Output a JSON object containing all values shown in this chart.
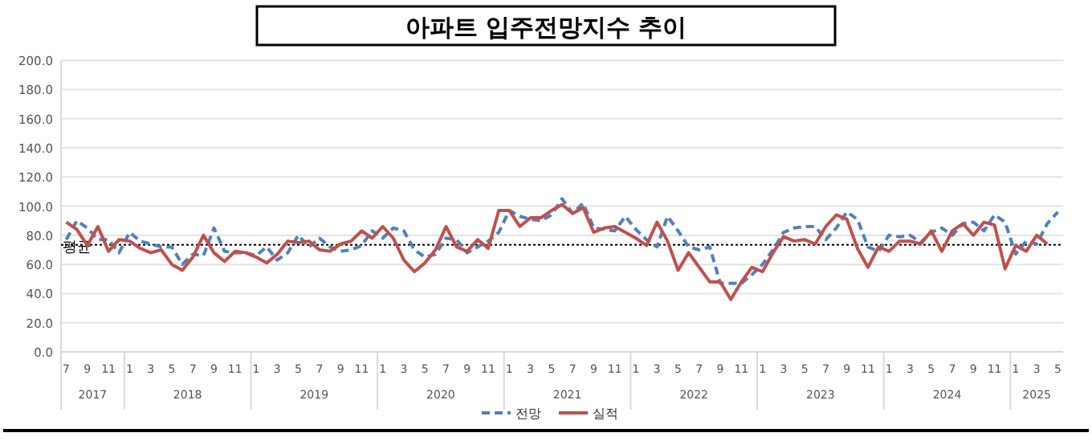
{
  "chart_data": {
    "type": "line",
    "title": "아파트 입주전망지수 추이",
    "x": [
      "2017-07",
      "2017-08",
      "2017-09",
      "2017-10",
      "2017-11",
      "2017-12",
      "2018-01",
      "2018-02",
      "2018-03",
      "2018-04",
      "2018-05",
      "2018-06",
      "2018-07",
      "2018-08",
      "2018-09",
      "2018-10",
      "2018-11",
      "2018-12",
      "2019-01",
      "2019-02",
      "2019-03",
      "2019-04",
      "2019-05",
      "2019-06",
      "2019-07",
      "2019-08",
      "2019-09",
      "2019-10",
      "2019-11",
      "2019-12",
      "2020-01",
      "2020-02",
      "2020-03",
      "2020-04",
      "2020-05",
      "2020-06",
      "2020-07",
      "2020-08",
      "2020-09",
      "2020-10",
      "2020-11",
      "2020-12",
      "2021-01",
      "2021-02",
      "2021-03",
      "2021-04",
      "2021-05",
      "2021-06",
      "2021-07",
      "2021-08",
      "2021-09",
      "2021-10",
      "2021-11",
      "2021-12",
      "2022-01",
      "2022-02",
      "2022-03",
      "2022-04",
      "2022-05",
      "2022-06",
      "2022-07",
      "2022-08",
      "2022-09",
      "2022-10",
      "2022-11",
      "2022-12",
      "2023-01",
      "2023-02",
      "2023-03",
      "2023-04",
      "2023-05",
      "2023-06",
      "2023-07",
      "2023-08",
      "2023-09",
      "2023-10",
      "2023-11",
      "2023-12",
      "2024-01",
      "2024-02",
      "2024-03",
      "2024-04",
      "2024-05",
      "2024-06",
      "2024-07",
      "2024-08",
      "2024-09",
      "2024-10",
      "2024-11",
      "2024-12",
      "2025-01",
      "2025-02",
      "2025-03",
      "2025-04",
      "2025-05"
    ],
    "series": [
      {
        "name": "전망",
        "color": "#4f81bd",
        "line_style": "dashed",
        "values": [
          77,
          90,
          85,
          77,
          77,
          68,
          82,
          76,
          74,
          72,
          72,
          60,
          67,
          66,
          85,
          69,
          68,
          68,
          66,
          72,
          63,
          68,
          80,
          72,
          78,
          72,
          69,
          70,
          73,
          83,
          78,
          85,
          83,
          70,
          65,
          67,
          78,
          77,
          68,
          72,
          76,
          82,
          97,
          93,
          91,
          90,
          94,
          105,
          95,
          102,
          85,
          84,
          83,
          93,
          84,
          77,
          72,
          93,
          83,
          72,
          70,
          72,
          47,
          47,
          47,
          53,
          60,
          70,
          82,
          85,
          86,
          86,
          77,
          85,
          96,
          91,
          72,
          69,
          80,
          79,
          80,
          75,
          82,
          85,
          80,
          88,
          89,
          83,
          94,
          89,
          67,
          76,
          74,
          88,
          96
        ]
      },
      {
        "name": "실적",
        "color": "#c0504d",
        "line_style": "solid",
        "values": [
          89,
          84,
          73,
          86,
          69,
          77,
          76,
          71,
          68,
          70,
          60,
          56,
          65,
          80,
          68,
          62,
          69,
          68,
          65,
          61,
          67,
          76,
          75,
          76,
          70,
          69,
          74,
          76,
          83,
          78,
          86,
          78,
          63,
          55,
          61,
          70,
          86,
          72,
          69,
          77,
          71,
          97,
          97,
          86,
          92,
          92,
          97,
          101,
          95,
          99,
          82,
          85,
          86,
          82,
          78,
          73,
          89,
          76,
          56,
          68,
          58,
          48,
          48,
          36,
          48,
          58,
          55,
          68,
          79,
          76,
          77,
          74,
          86,
          94,
          91,
          71,
          58,
          72,
          69,
          76,
          76,
          74,
          83,
          69,
          83,
          88,
          80,
          89,
          87,
          57,
          73,
          69,
          80,
          74,
          null
        ]
      }
    ],
    "ylim": [
      0,
      200
    ],
    "yticks": [
      {
        "value": 0,
        "label": "0.0"
      },
      {
        "value": 20,
        "label": "20.0"
      },
      {
        "value": 40,
        "label": "40.0"
      },
      {
        "value": 60,
        "label": "60.0"
      },
      {
        "value": 80,
        "label": "80.0"
      },
      {
        "value": 100,
        "label": "100.0"
      },
      {
        "value": 120,
        "label": "120.0"
      },
      {
        "value": 140,
        "label": "140.0"
      },
      {
        "value": 160,
        "label": "160.0"
      },
      {
        "value": 180,
        "label": "180.0"
      },
      {
        "value": 200,
        "label": "200.0"
      }
    ],
    "xlim": [
      "2017-06-16",
      "2025-05-16"
    ],
    "xticks": [
      {
        "value": "2017-07",
        "label": "7"
      },
      {
        "value": "2017-09",
        "label": "9"
      },
      {
        "value": "2017-11",
        "label": "11"
      },
      {
        "value": "2018-01",
        "label": "1"
      },
      {
        "value": "2018-03",
        "label": "3"
      },
      {
        "value": "2018-05",
        "label": "5"
      },
      {
        "value": "2018-07",
        "label": "7"
      },
      {
        "value": "2018-09",
        "label": "9"
      },
      {
        "value": "2018-11",
        "label": "11"
      },
      {
        "value": "2019-01",
        "label": "1"
      },
      {
        "value": "2019-03",
        "label": "3"
      },
      {
        "value": "2019-05",
        "label": "5"
      },
      {
        "value": "2019-07",
        "label": "7"
      },
      {
        "value": "2019-09",
        "label": "9"
      },
      {
        "value": "2019-11",
        "label": "11"
      },
      {
        "value": "2020-01",
        "label": "1"
      },
      {
        "value": "2020-03",
        "label": "3"
      },
      {
        "value": "2020-05",
        "label": "5"
      },
      {
        "value": "2020-07",
        "label": "7"
      },
      {
        "value": "2020-09",
        "label": "9"
      },
      {
        "value": "2020-11",
        "label": "11"
      },
      {
        "value": "2021-01",
        "label": "1"
      },
      {
        "value": "2021-03",
        "label": "3"
      },
      {
        "value": "2021-05",
        "label": "5"
      },
      {
        "value": "2021-07",
        "label": "7"
      },
      {
        "value": "2021-09",
        "label": "9"
      },
      {
        "value": "2021-11",
        "label": "11"
      },
      {
        "value": "2022-01",
        "label": "1"
      },
      {
        "value": "2022-03",
        "label": "3"
      },
      {
        "value": "2022-05",
        "label": "5"
      },
      {
        "value": "2022-07",
        "label": "7"
      },
      {
        "value": "2022-09",
        "label": "9"
      },
      {
        "value": "2022-11",
        "label": "11"
      },
      {
        "value": "2023-01",
        "label": "1"
      },
      {
        "value": "2023-03",
        "label": "3"
      },
      {
        "value": "2023-05",
        "label": "5"
      },
      {
        "value": "2023-07",
        "label": "7"
      },
      {
        "value": "2023-09",
        "label": "9"
      },
      {
        "value": "2023-11",
        "label": "11"
      },
      {
        "value": "2024-01",
        "label": "1"
      },
      {
        "value": "2024-03",
        "label": "3"
      },
      {
        "value": "2024-05",
        "label": "5"
      },
      {
        "value": "2024-07",
        "label": "7"
      },
      {
        "value": "2024-09",
        "label": "9"
      },
      {
        "value": "2024-11",
        "label": "11"
      },
      {
        "value": "2025-01",
        "label": "1"
      },
      {
        "value": "2025-03",
        "label": "3"
      },
      {
        "value": "2025-05",
        "label": "5"
      }
    ],
    "annotations": [
      "2017",
      "2018",
      "2019",
      "2020",
      "2021",
      "2022",
      "2023",
      "2024",
      "2025"
    ],
    "ref_lines": [
      {
        "axis": "y",
        "value": 73.5,
        "label": "평균",
        "color": "#000000",
        "line_style": "dotted"
      }
    ],
    "grid": "y",
    "legend": "bottom"
  }
}
